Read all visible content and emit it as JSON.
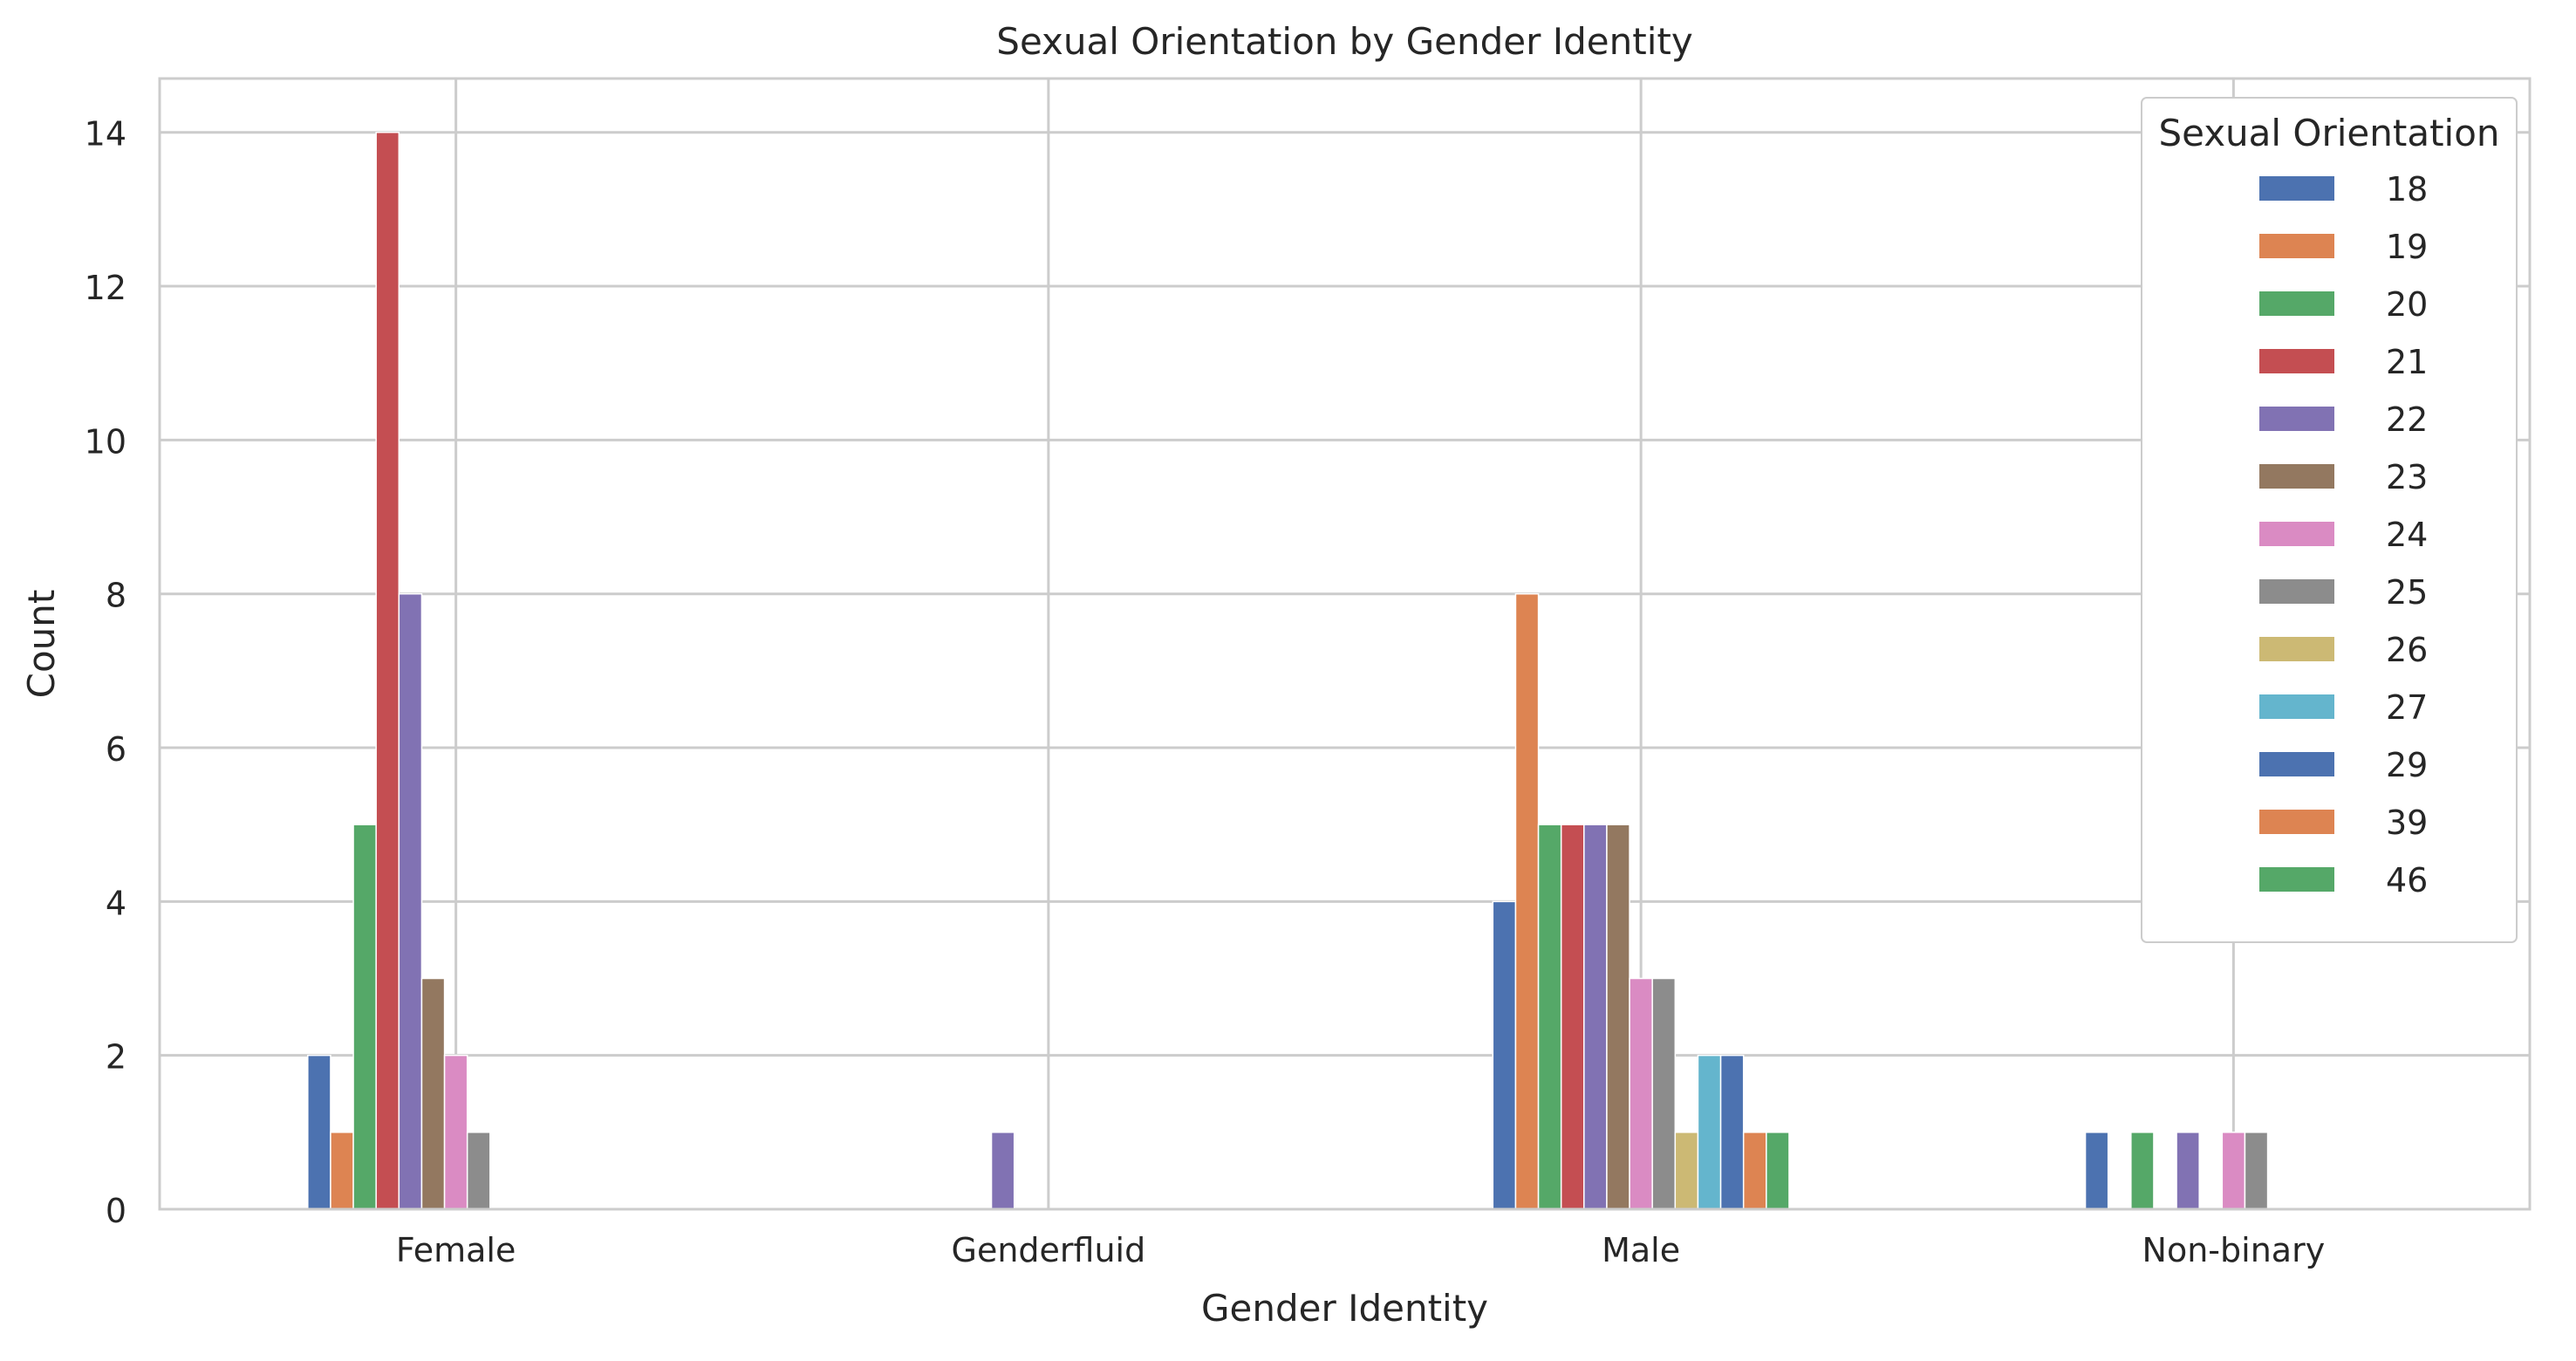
{
  "chart_data": {
    "type": "bar",
    "title": "Sexual Orientation by Gender Identity",
    "xlabel": "Gender Identity",
    "ylabel": "Count",
    "ylim": [
      0,
      14.7
    ],
    "yticks": [
      0,
      2,
      4,
      6,
      8,
      10,
      12,
      14
    ],
    "grid": true,
    "categories": [
      "Female",
      "Genderfluid",
      "Male",
      "Non-binary"
    ],
    "legend": {
      "title": "Sexual Orientation",
      "placement": "top-right"
    },
    "series": [
      {
        "name": "18",
        "color": "#4c72b0",
        "values": [
          2,
          0,
          4,
          1
        ]
      },
      {
        "name": "19",
        "color": "#dd8452",
        "values": [
          1,
          0,
          8,
          0
        ]
      },
      {
        "name": "20",
        "color": "#55a868",
        "values": [
          5,
          0,
          5,
          1
        ]
      },
      {
        "name": "21",
        "color": "#c44e52",
        "values": [
          14,
          0,
          5,
          0
        ]
      },
      {
        "name": "22",
        "color": "#8172b3",
        "values": [
          8,
          1,
          5,
          1
        ]
      },
      {
        "name": "23",
        "color": "#937860",
        "values": [
          3,
          0,
          5,
          0
        ]
      },
      {
        "name": "24",
        "color": "#da8bc3",
        "values": [
          2,
          0,
          3,
          1
        ]
      },
      {
        "name": "25",
        "color": "#8c8c8c",
        "values": [
          1,
          0,
          3,
          1
        ]
      },
      {
        "name": "26",
        "color": "#ccb974",
        "values": [
          0,
          0,
          1,
          0
        ]
      },
      {
        "name": "27",
        "color": "#64b5cd",
        "values": [
          0,
          0,
          2,
          0
        ]
      },
      {
        "name": "29",
        "color": "#4c72b0",
        "values": [
          0,
          0,
          2,
          0
        ]
      },
      {
        "name": "39",
        "color": "#dd8452",
        "values": [
          0,
          0,
          1,
          0
        ]
      },
      {
        "name": "46",
        "color": "#55a868",
        "values": [
          0,
          0,
          1,
          0
        ]
      }
    ]
  }
}
